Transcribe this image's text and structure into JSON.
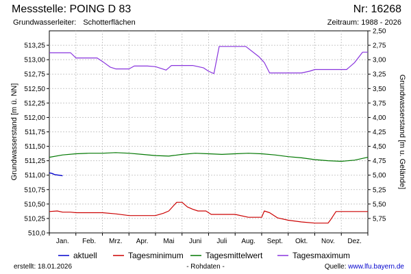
{
  "header": {
    "title": "Messstelle: POING D 83",
    "number": "Nr: 16268",
    "aquifer_label": "Grundwasserleiter:",
    "aquifer_value": "Schotterflächen",
    "period": "Zeitraum: 1988 - 2026"
  },
  "footer": {
    "created": "erstellt:  18.01.2026",
    "raw": "- Rohdaten -",
    "source_label": "Quelle:",
    "source_url": "www.lfu.bayern.de"
  },
  "colors": {
    "aktuell": "#0000cc",
    "min": "#cc0000",
    "mittel": "#007700",
    "max": "#8833dd",
    "grid": "#c8c8c8"
  },
  "chart_data": {
    "type": "line",
    "ylabel_left": "Grundwasserstand [m ü. NN]",
    "ylabel_right": "Grundwasserstand [m u. Gelände]",
    "ylim": [
      510.0,
      513.5
    ],
    "ylim_right": [
      2.5,
      6.0
    ],
    "yticks_left": [
      "510,0",
      "510,25",
      "510,50",
      "510,75",
      "511,00",
      "511,25",
      "511,50",
      "511,75",
      "512,00",
      "512,25",
      "512,50",
      "512,75",
      "513,00",
      "513,25"
    ],
    "yticks_right": [
      "2,50",
      "2,75",
      "3,00",
      "3,25",
      "3,50",
      "3,75",
      "4,00",
      "4,25",
      "4,50",
      "4,75",
      "5,00",
      "5,25",
      "5,50",
      "5,75"
    ],
    "xlim": [
      0,
      12
    ],
    "months": [
      "Jan.",
      "Feb.",
      "Mrz.",
      "Apr.",
      "Mai",
      "Juni",
      "Juli",
      "Aug.",
      "Sept.",
      "Okt.",
      "Nov.",
      "Dez."
    ],
    "series": [
      {
        "key": "aktuell",
        "name": "aktuell",
        "color": "#0000cc",
        "x": [
          0.0,
          0.1,
          0.2,
          0.35,
          0.5
        ],
        "y": [
          511.04,
          511.03,
          511.01,
          511.0,
          510.99
        ]
      },
      {
        "key": "min",
        "name": "Tagesminimum",
        "color": "#cc0000",
        "x": [
          0.0,
          0.3,
          0.5,
          0.8,
          1.0,
          1.5,
          2.0,
          2.5,
          3.0,
          3.5,
          4.0,
          4.3,
          4.5,
          4.7,
          4.8,
          5.0,
          5.2,
          5.4,
          5.6,
          5.9,
          6.1,
          6.4,
          7.0,
          7.5,
          8.0,
          8.1,
          8.3,
          8.6,
          9.0,
          9.5,
          10.0,
          10.5,
          10.6,
          10.8,
          11.0,
          11.5,
          12.0
        ],
        "y": [
          510.37,
          510.38,
          510.36,
          510.36,
          510.35,
          510.35,
          510.35,
          510.33,
          510.3,
          510.3,
          510.3,
          510.34,
          510.38,
          510.48,
          510.53,
          510.53,
          510.45,
          510.41,
          510.38,
          510.38,
          510.32,
          510.32,
          510.32,
          510.27,
          510.27,
          510.38,
          510.35,
          510.26,
          510.22,
          510.19,
          510.17,
          510.17,
          510.23,
          510.37,
          510.37,
          510.37,
          510.37
        ]
      },
      {
        "key": "mittel",
        "name": "Tagesmittelwert",
        "color": "#007700",
        "x": [
          0.0,
          0.5,
          1.0,
          1.5,
          2.0,
          2.5,
          3.0,
          3.5,
          4.0,
          4.5,
          5.0,
          5.5,
          6.0,
          6.5,
          7.0,
          7.5,
          8.0,
          8.5,
          9.0,
          9.5,
          10.0,
          10.5,
          11.0,
          11.5,
          12.0
        ],
        "y": [
          511.31,
          511.35,
          511.37,
          511.38,
          511.38,
          511.39,
          511.38,
          511.36,
          511.34,
          511.33,
          511.36,
          511.38,
          511.37,
          511.36,
          511.37,
          511.38,
          511.37,
          511.35,
          511.32,
          511.3,
          511.27,
          511.25,
          511.24,
          511.26,
          511.31
        ]
      },
      {
        "key": "max",
        "name": "Tagesmaximum",
        "color": "#8833dd",
        "x": [
          0.0,
          0.4,
          0.8,
          1.0,
          1.5,
          1.8,
          2.0,
          2.3,
          2.5,
          2.8,
          3.0,
          3.2,
          3.7,
          4.0,
          4.2,
          4.4,
          4.6,
          5.0,
          5.4,
          5.8,
          6.0,
          6.2,
          6.4,
          6.5,
          6.6,
          6.8,
          7.0,
          7.4,
          7.9,
          8.1,
          8.3,
          8.5,
          9.0,
          9.5,
          9.8,
          10.0,
          10.5,
          11.0,
          11.2,
          11.5,
          11.8,
          12.0
        ],
        "y": [
          513.12,
          513.12,
          513.12,
          513.03,
          513.03,
          513.03,
          512.97,
          512.87,
          512.84,
          512.84,
          512.84,
          512.89,
          512.89,
          512.88,
          512.85,
          512.82,
          512.9,
          512.9,
          512.9,
          512.86,
          512.8,
          512.76,
          513.23,
          513.23,
          513.23,
          513.23,
          513.23,
          513.23,
          513.05,
          512.95,
          512.77,
          512.77,
          512.77,
          512.77,
          512.8,
          512.83,
          512.83,
          512.83,
          512.83,
          512.95,
          513.13,
          513.13
        ]
      }
    ],
    "legend_position": "bottom",
    "grid": true
  }
}
